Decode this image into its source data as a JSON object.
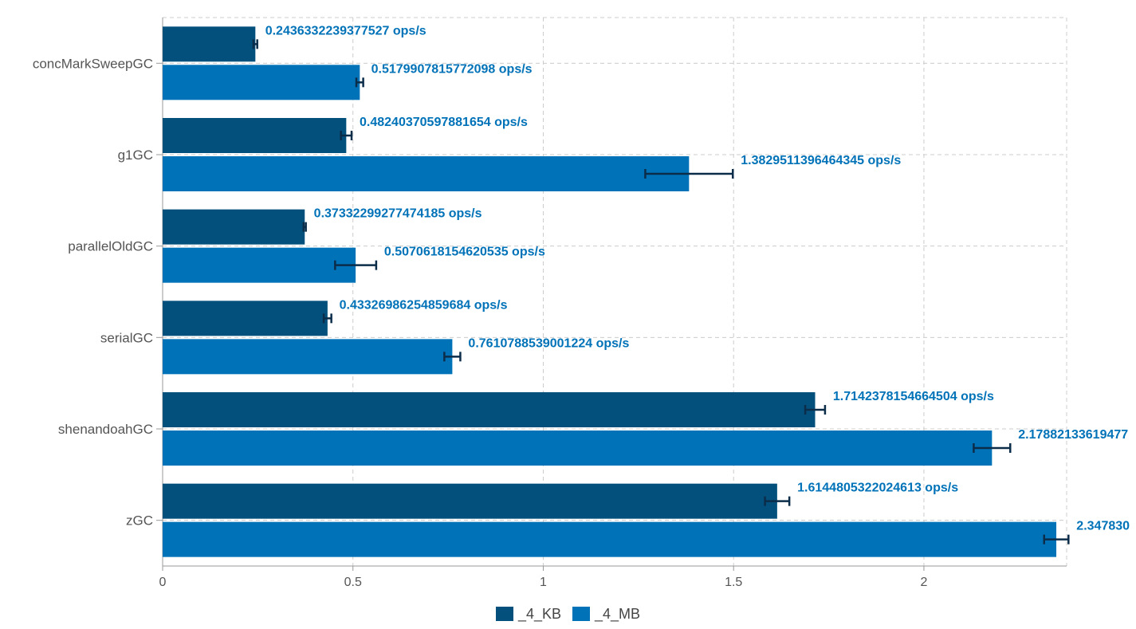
{
  "chart_data": {
    "type": "bar",
    "orientation": "horizontal",
    "categories": [
      "concMarkSweepGC",
      "g1GC",
      "parallelOldGC",
      "serialGC",
      "shenandoahGC",
      "zGC"
    ],
    "series": [
      {
        "name": "_4_KB",
        "color": "#04507c",
        "values": [
          0.2436332239377527,
          0.48240370597881654,
          0.37332299277474185,
          0.43326986254859684,
          1.7142378154664504,
          1.6144805322024613
        ],
        "errors": [
          0.005,
          0.014,
          0.003,
          0.01,
          0.026,
          0.032
        ],
        "labels": [
          "0.2436332239377527 ops/s",
          "0.48240370597881654 ops/s",
          "0.37332299277474185 ops/s",
          "0.43326986254859684 ops/s",
          "1.7142378154664504 ops/s",
          "1.6144805322024613 ops/s"
        ]
      },
      {
        "name": "_4_MB",
        "color": "#0072b8",
        "values": [
          0.5179907815772098,
          1.3829511396464345,
          0.5070618154620535,
          0.7610788539001224,
          2.17882133619477,
          2.34783
        ],
        "errors": [
          0.009,
          0.115,
          0.054,
          0.021,
          0.048,
          0.032
        ],
        "labels": [
          "0.5179907815772098 ops/s",
          "1.3829511396464345 ops/s",
          "0.5070618154620535 ops/s",
          "0.7610788539001224 ops/s",
          "2.17882133619477",
          "2.347830"
        ]
      }
    ],
    "xticks": [
      0,
      0.5,
      1,
      1.5,
      2
    ],
    "xtick_labels": [
      "0",
      "0.5",
      "1",
      "1.5",
      "2"
    ],
    "xlim": [
      0,
      2.375
    ],
    "grid": true,
    "legend": "bottom-center"
  }
}
